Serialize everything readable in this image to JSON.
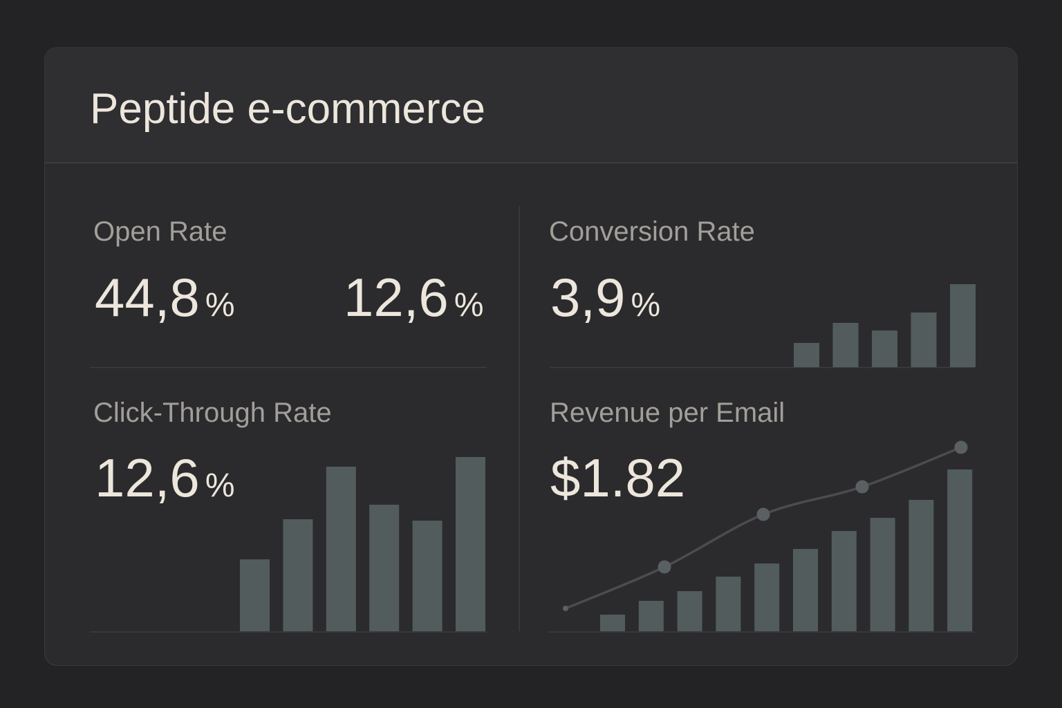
{
  "header": {
    "title": "Peptide e-commerce"
  },
  "panels": [
    {
      "label": "Open Rate",
      "metrics": [
        {
          "value": "44,8",
          "unit": "%"
        },
        {
          "value": "12,6",
          "unit": "%"
        }
      ]
    },
    {
      "label": "Conversion Rate",
      "metrics": [
        {
          "value": "3,9",
          "unit": "%"
        }
      ],
      "bars": [
        35,
        64,
        53,
        79,
        120
      ]
    },
    {
      "label": "Click-Through Rate",
      "metrics": [
        {
          "value": "12,6",
          "unit": "%"
        }
      ],
      "bars": [
        104,
        162,
        238,
        183,
        160,
        252
      ]
    },
    {
      "label": "Revenue per Email",
      "metrics": [
        {
          "value": "$1.82"
        }
      ],
      "bars": [
        24,
        44,
        58,
        79,
        98,
        119,
        145,
        164,
        190,
        234
      ],
      "trend": [
        33,
        93,
        169,
        209,
        266
      ]
    }
  ]
}
